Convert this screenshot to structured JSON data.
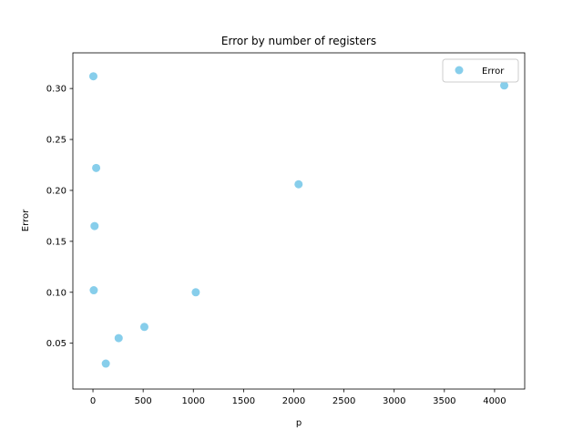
{
  "chart_data": {
    "type": "scatter",
    "title": "Error by number of registers",
    "xlabel": "p",
    "ylabel": "Error",
    "xlim": [
      -200,
      4300
    ],
    "ylim": [
      0.005,
      0.335
    ],
    "x_ticks": [
      0,
      500,
      1000,
      1500,
      2000,
      2500,
      3000,
      3500,
      4000
    ],
    "y_ticks": [
      0.05,
      0.1,
      0.15,
      0.2,
      0.25,
      0.3
    ],
    "y_tick_labels": [
      "0.05",
      "0.10",
      "0.15",
      "0.20",
      "0.25",
      "0.30"
    ],
    "grid": false,
    "legend_position": "top-right",
    "series": [
      {
        "name": "Error",
        "color": "#87CEEB",
        "points": [
          {
            "x": 4,
            "y": 0.312
          },
          {
            "x": 8,
            "y": 0.102
          },
          {
            "x": 16,
            "y": 0.165
          },
          {
            "x": 32,
            "y": 0.222
          },
          {
            "x": 128,
            "y": 0.03
          },
          {
            "x": 256,
            "y": 0.055
          },
          {
            "x": 512,
            "y": 0.066
          },
          {
            "x": 1024,
            "y": 0.1
          },
          {
            "x": 2048,
            "y": 0.206
          },
          {
            "x": 4096,
            "y": 0.303
          }
        ]
      }
    ]
  }
}
